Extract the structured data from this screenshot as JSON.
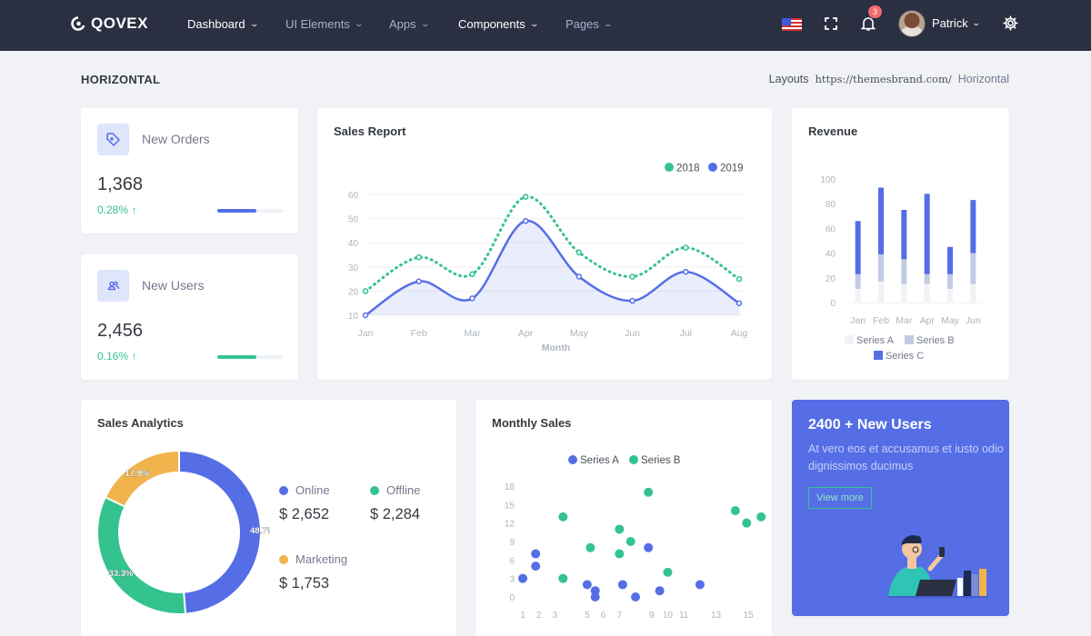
{
  "brand": {
    "name": "QOVEX"
  },
  "nav": [
    {
      "label": "Dashboard"
    },
    {
      "label": "UI Elements"
    },
    {
      "label": "Apps"
    },
    {
      "label": "Components"
    },
    {
      "label": "Pages"
    }
  ],
  "notifications": {
    "count": "3"
  },
  "user": {
    "name": "Patrick"
  },
  "page": {
    "title": "HORIZONTAL"
  },
  "breadcrumb": {
    "first": "Layouts",
    "url": "https://themesbrand.com/",
    "current": "Horizontal"
  },
  "stats": [
    {
      "label": "New Orders",
      "value": "1,368",
      "change": "0.28% ↑",
      "progress": 0.6,
      "color": "#556ee6"
    },
    {
      "label": "New Users",
      "value": "2,456",
      "change": "0.16% ↑",
      "progress": 0.6,
      "color": "#34c38f"
    }
  ],
  "sales_report": {
    "title": "Sales Report"
  },
  "revenue": {
    "title": "Revenue"
  },
  "analytics": {
    "title": "Sales Analytics",
    "items": [
      {
        "label": "Online",
        "value": "$ 2,652",
        "color": "#556ee6"
      },
      {
        "label": "Offline",
        "value": "$ 2,284",
        "color": "#34c38f"
      },
      {
        "label": "Marketing",
        "value": "$ 1,753",
        "color": "#f1b44c"
      }
    ]
  },
  "monthly": {
    "title": "Monthly Sales"
  },
  "promo": {
    "title": "2400 + New Users",
    "text": "At vero eos et accusamus et iusto odio dignissimos ducimus",
    "button": "View more"
  },
  "chart_data": [
    {
      "type": "line",
      "title": "Sales Report",
      "xlabel": "Month",
      "ylabel": "",
      "categories": [
        "Jan",
        "Feb",
        "Mar",
        "Apr",
        "May",
        "Jun",
        "Jul",
        "Aug"
      ],
      "ylim": [
        10,
        60
      ],
      "yticks": [
        10,
        20,
        30,
        40,
        50,
        60
      ],
      "legend": "top-right",
      "series": [
        {
          "name": "2018",
          "values": [
            20,
            34,
            27,
            59,
            36,
            26,
            38,
            25
          ],
          "color": "#34c38f",
          "style": "dotted"
        },
        {
          "name": "2019",
          "values": [
            10,
            24,
            17,
            49,
            26,
            16,
            28,
            15
          ],
          "color": "#556ee6",
          "style": "solid-area"
        }
      ]
    },
    {
      "type": "bar",
      "title": "Revenue",
      "stacked": true,
      "categories": [
        "Jan",
        "Feb",
        "Mar",
        "Apr",
        "May",
        "Jun"
      ],
      "ylim": [
        0,
        100
      ],
      "yticks": [
        0,
        20,
        40,
        60,
        80,
        100
      ],
      "legend": "bottom",
      "series": [
        {
          "name": "Series A",
          "values": [
            11,
            17,
            15,
            15,
            11,
            15
          ],
          "color": "#eff2f7"
        },
        {
          "name": "Series B",
          "values": [
            12,
            22,
            20,
            8,
            12,
            25
          ],
          "color": "#c3cbe4"
        },
        {
          "name": "Series C",
          "values": [
            43,
            54,
            40,
            65,
            22,
            43
          ],
          "color": "#556ee6"
        }
      ]
    },
    {
      "type": "pie",
      "title": "Sales Analytics",
      "donut": true,
      "labels": [
        "Online",
        "Offline",
        "Marketing"
      ],
      "values": [
        48.7,
        33.3,
        17.9
      ],
      "value_labels": [
        "48.7%",
        "33.3%",
        "17.9%"
      ],
      "colors": [
        "#556ee6",
        "#34c38f",
        "#f1b44c"
      ]
    },
    {
      "type": "scatter",
      "title": "Monthly Sales",
      "legend": "top",
      "xticks": [
        1,
        2,
        3,
        5,
        6,
        7,
        9,
        10,
        11,
        13,
        15
      ],
      "ylim": [
        0,
        18
      ],
      "yticks": [
        0,
        3,
        6,
        9,
        12,
        15,
        18
      ],
      "series": [
        {
          "name": "Series A",
          "color": "#556ee6",
          "points": [
            [
              1,
              3
            ],
            [
              1.8,
              5
            ],
            [
              1.8,
              7
            ],
            [
              5,
              2
            ],
            [
              5.5,
              1
            ],
            [
              5.5,
              0
            ],
            [
              7.2,
              2
            ],
            [
              8,
              0
            ],
            [
              8.8,
              8
            ],
            [
              9.5,
              1
            ],
            [
              12,
              2
            ]
          ]
        },
        {
          "name": "Series B",
          "color": "#34c38f",
          "points": [
            [
              3.5,
              13
            ],
            [
              3.5,
              3
            ],
            [
              5.2,
              8
            ],
            [
              7,
              11
            ],
            [
              7,
              7
            ],
            [
              7.7,
              9
            ],
            [
              8.8,
              17
            ],
            [
              10,
              4
            ],
            [
              14.2,
              14
            ],
            [
              14.9,
              12
            ],
            [
              15.8,
              13
            ]
          ]
        }
      ]
    }
  ]
}
